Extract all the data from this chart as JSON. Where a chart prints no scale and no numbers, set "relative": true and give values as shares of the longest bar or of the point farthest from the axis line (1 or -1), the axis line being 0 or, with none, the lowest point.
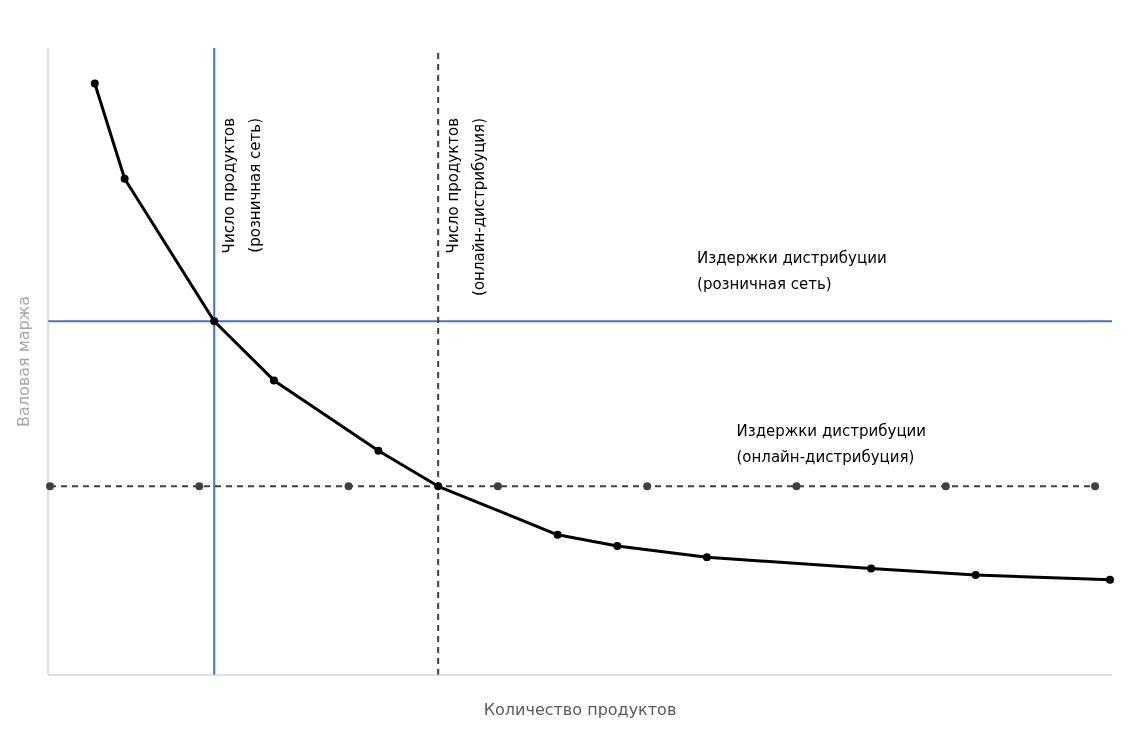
{
  "chart_data": {
    "type": "line",
    "relative": true,
    "xlabel": "Количество продуктов",
    "ylabel": "Валовая маржа",
    "grid": false,
    "legend": false,
    "marker": "circle",
    "categories": [
      null,
      null,
      null,
      null,
      null,
      null,
      null,
      null,
      null,
      null,
      null,
      null,
      null,
      null,
      null,
      null,
      null,
      null,
      null,
      null,
      null,
      null,
      null,
      null,
      null,
      null,
      null,
      null,
      null,
      null,
      null,
      null,
      null,
      null,
      null,
      null,
      null,
      null,
      null,
      null,
      null,
      null,
      null,
      null,
      null,
      null,
      null,
      null,
      null,
      null,
      null,
      null,
      null,
      null,
      null,
      null,
      null,
      null,
      null,
      null,
      null,
      null,
      null,
      null,
      null,
      null,
      null,
      null,
      null,
      null,
      null,
      null
    ],
    "series": [
      {
        "color": "#000000",
        "line_style": "solid",
        "values": [
          null,
          null,
          null,
          1.0,
          null,
          0.839,
          null,
          null,
          null,
          null,
          null,
          0.598,
          null,
          null,
          null,
          0.498,
          null,
          null,
          null,
          null,
          null,
          null,
          0.379,
          null,
          null,
          null,
          0.319,
          null,
          null,
          null,
          null,
          null,
          null,
          null,
          0.237,
          null,
          null,
          null,
          0.218,
          null,
          null,
          null,
          null,
          null,
          0.199,
          null,
          null,
          null,
          null,
          null,
          null,
          null,
          null,
          null,
          null,
          0.18,
          null,
          null,
          null,
          null,
          null,
          null,
          0.169,
          null,
          null,
          null,
          null,
          null,
          null,
          null,
          null,
          0.161
        ]
      },
      {
        "name": "Издержки дистрибуции\n(онлайн-дистрибуция)",
        "color": "#404040",
        "line_style": "dashed",
        "values": [
          0.319,
          null,
          null,
          null,
          null,
          null,
          null,
          null,
          null,
          null,
          0.319,
          null,
          null,
          null,
          null,
          null,
          null,
          null,
          null,
          null,
          0.319,
          null,
          null,
          null,
          null,
          null,
          null,
          null,
          null,
          null,
          0.319,
          null,
          null,
          null,
          null,
          null,
          null,
          null,
          null,
          null,
          0.319,
          null,
          null,
          null,
          null,
          null,
          null,
          null,
          null,
          null,
          0.319,
          null,
          null,
          null,
          null,
          null,
          null,
          null,
          null,
          null,
          0.319,
          null,
          null,
          null,
          null,
          null,
          null,
          null,
          null,
          null,
          0.319,
          null
        ]
      }
    ],
    "ref_lines": [
      {
        "axis": "y",
        "value": 0.598,
        "label": "Издержки дистрибуции\n(розничная сеть)",
        "color": "#4472c4",
        "line_style": "solid"
      }
    ],
    "annotations": [
      "Число продуктов\n(розничная сеть)",
      "Число продуктов\n(онлайн-дистрибуция)"
    ]
  }
}
